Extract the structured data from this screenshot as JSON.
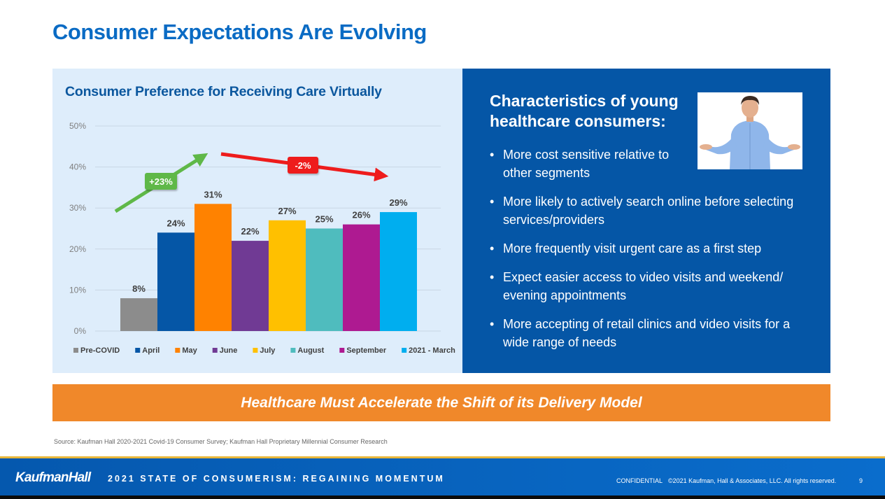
{
  "slide": {
    "title": "Consumer Expectations Are Evolving"
  },
  "chart_data": {
    "type": "bar",
    "title": "Consumer Preference for Receiving Care Virtually",
    "xlabel": "",
    "ylabel": "",
    "ylim": [
      0,
      50
    ],
    "yticks": [
      0,
      10,
      20,
      30,
      40,
      50
    ],
    "ytick_labels": [
      "0%",
      "10%",
      "20%",
      "30%",
      "40%",
      "50%"
    ],
    "grid": true,
    "legend_position": "bottom",
    "categories": [
      "Pre-COVID",
      "April",
      "May",
      "June",
      "July",
      "August",
      "September",
      "2021 - March"
    ],
    "values": [
      8,
      24,
      31,
      22,
      27,
      25,
      26,
      29
    ],
    "data_labels": [
      "8%",
      "24%",
      "31%",
      "22%",
      "27%",
      "25%",
      "26%",
      "29%"
    ],
    "colors": [
      "#8c8c8c",
      "#0556a6",
      "#ff8200",
      "#703a94",
      "#ffc000",
      "#4fbcbe",
      "#ae1a91",
      "#00aeef"
    ],
    "annotations": [
      {
        "label": "+23%",
        "direction": "up",
        "from_category": "Pre-COVID",
        "to_category": "May",
        "color": "#5fb848"
      },
      {
        "label": "-2%",
        "direction": "down",
        "from_category": "May",
        "to_category": "2021 - March",
        "color": "#ee1c1c"
      }
    ]
  },
  "info_panel": {
    "heading": "Characteristics of young healthcare consumers:",
    "photo_alt": "shrugging man",
    "bullets": [
      "More cost sensitive relative to other segments",
      "More likely to actively search online before selecting services/providers",
      "More frequently visit urgent care as a first step",
      "Expect easier access to video visits and weekend/ evening appointments",
      "More accepting of retail clinics and video visits for a wide range of needs"
    ]
  },
  "banner": {
    "text": "Healthcare Must Accelerate the Shift of its Delivery Model"
  },
  "source": "Source: Kaufman Hall 2020-2021 Covid-19 Consumer Survey; Kaufman Hall Proprietary Millennial Consumer Research",
  "footer": {
    "logo": "KaufmanHall",
    "subtitle": "2021 STATE OF CONSUMERISM: REGAINING MOMENTUM",
    "confidential": "CONFIDENTIAL",
    "copyright": "©2021 Kaufman, Hall & Associates, LLC. All rights reserved.",
    "page_number": "9"
  }
}
